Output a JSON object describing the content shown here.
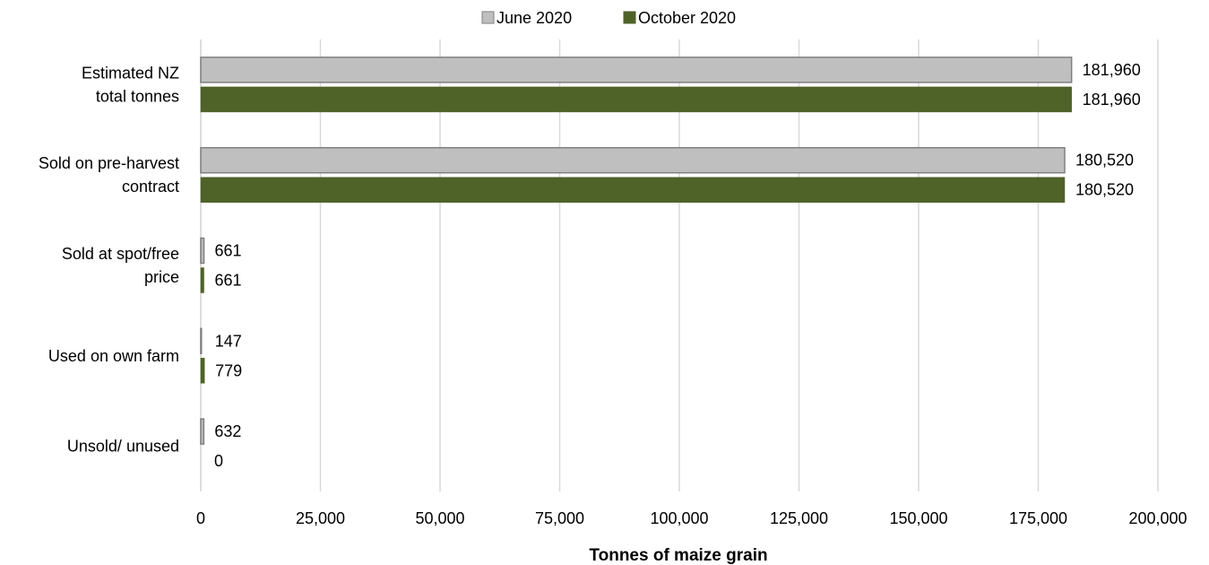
{
  "chart_data": {
    "type": "bar",
    "orientation": "horizontal",
    "categories": [
      [
        "Estimated NZ",
        "total tonnes"
      ],
      [
        "Sold on pre-harvest",
        "contract"
      ],
      [
        "Sold at spot/free",
        "price"
      ],
      [
        "Used on own farm"
      ],
      [
        "Unsold/ unused"
      ]
    ],
    "series": [
      {
        "name": "June 2020",
        "color": "#bfbfbf",
        "stroke": "#7f7f7f",
        "values": [
          181960,
          180520,
          661,
          147,
          632
        ],
        "labels": [
          "181,960",
          "180,520",
          "661",
          "147",
          "632"
        ]
      },
      {
        "name": "October 2020",
        "color": "#4f6228",
        "stroke": "#4f6228",
        "values": [
          181960,
          180520,
          661,
          779,
          0
        ],
        "labels": [
          "181,960",
          "180,520",
          "661",
          "779",
          "0"
        ]
      }
    ],
    "xlabel": "Tonnes of maize grain",
    "xlim": [
      0,
      200000
    ],
    "xticks": [
      0,
      25000,
      50000,
      75000,
      100000,
      125000,
      150000,
      175000,
      200000
    ],
    "xtick_labels": [
      "0",
      "25,000",
      "50,000",
      "75,000",
      "100,000",
      "125,000",
      "150,000",
      "175,000",
      "200,000"
    ],
    "grid": "vertical",
    "legend_position": "top-center",
    "gridline_color": "#d9d9d9"
  }
}
